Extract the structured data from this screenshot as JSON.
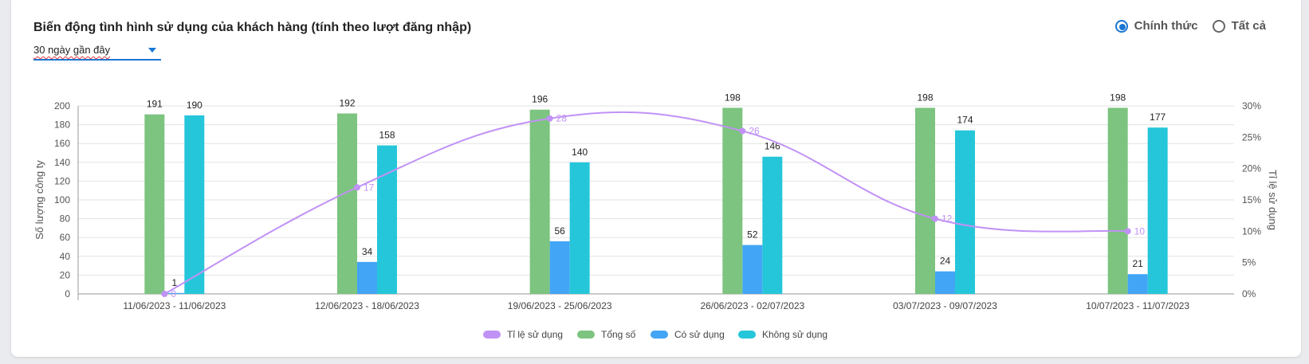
{
  "header": {
    "title": "Biến động tình hình sử dụng của khách hàng (tính theo lượt đăng nhập)",
    "period_select": "30 ngày gần đây"
  },
  "radios": [
    {
      "label": "Chính thức",
      "checked": true
    },
    {
      "label": "Tất cả",
      "checked": false
    }
  ],
  "chart_data": {
    "type": "bar",
    "categories": [
      "11/06/2023 - 11/06/2023",
      "12/06/2023 - 18/06/2023",
      "19/06/2023 - 25/06/2023",
      "26/06/2023 - 02/07/2023",
      "03/07/2023 - 09/07/2023",
      "10/07/2023 - 11/07/2023"
    ],
    "series": [
      {
        "name": "Tổng số",
        "type": "bar",
        "color": "#7cc47f",
        "values": [
          191,
          192,
          196,
          198,
          198,
          198
        ]
      },
      {
        "name": "Có sử dụng",
        "type": "bar",
        "color": "#42a5f5",
        "values": [
          1,
          34,
          56,
          52,
          24,
          21
        ]
      },
      {
        "name": "Không sử dụng",
        "type": "bar",
        "color": "#26c6da",
        "values": [
          190,
          158,
          140,
          146,
          174,
          177
        ]
      },
      {
        "name": "Tỉ lệ sử dụng",
        "type": "line",
        "axis": "right",
        "color": "#c192f5",
        "values": [
          0,
          17,
          28,
          26,
          12,
          10
        ]
      }
    ],
    "legend_order": [
      "Tỉ lệ sử dụng",
      "Tổng số",
      "Có sử dụng",
      "Không sử dụng"
    ],
    "ylabel": "Số lượng công ty",
    "y2label": "Tỉ lệ sử dụng",
    "ylim": [
      0,
      200
    ],
    "y2lim": [
      0,
      30
    ],
    "yticks": [
      0,
      20,
      40,
      60,
      80,
      100,
      120,
      140,
      160,
      180,
      200
    ],
    "y2ticks": [
      "0%",
      "5%",
      "10%",
      "15%",
      "20%",
      "25%",
      "30%"
    ],
    "grid": true,
    "legend_position": "bottom"
  }
}
